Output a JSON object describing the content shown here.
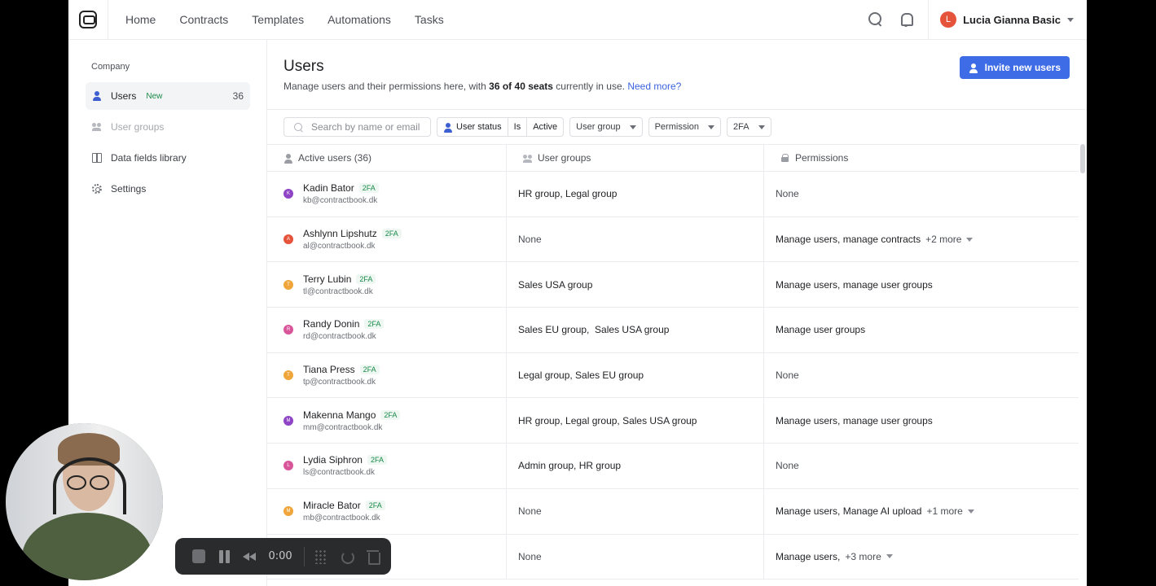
{
  "nav": {
    "links": [
      "Home",
      "Contracts",
      "Templates",
      "Automations",
      "Tasks"
    ],
    "user_initial": "L",
    "user_name": "Lucia Gianna Basic"
  },
  "sidebar": {
    "heading": "Company",
    "items": [
      {
        "label": "Users",
        "badge": "New",
        "count": "36"
      },
      {
        "label": "User groups"
      },
      {
        "label": "Data fields library"
      },
      {
        "label": "Settings"
      }
    ]
  },
  "header": {
    "title": "Users",
    "desc_prefix": "Manage users and their permissions here, with",
    "seats_used": "36",
    "seats_of": "of",
    "seats_total": "40",
    "seats_word": "seats",
    "desc_suffix": "currently in use.",
    "need_more": "Need more?",
    "invite_label": "Invite new users"
  },
  "filters": {
    "search_placeholder": "Search by name or email",
    "status_label": "User status",
    "status_op": "Is",
    "status_value": "Active",
    "group_label": "User group",
    "permission_label": "Permission",
    "tfa_label": "2FA"
  },
  "table": {
    "headers": [
      "Active users (36)",
      "User groups",
      "Permissions"
    ],
    "rows": [
      {
        "initial": "K",
        "color": "#8e44c4",
        "name": "Kadin Bator",
        "tfa": "2FA",
        "email": "kb@contractbook.dk",
        "groups": "HR group, Legal group",
        "permissions": "None",
        "more": ""
      },
      {
        "initial": "A",
        "color": "#e5533a",
        "name": "Ashlynn Lipshutz",
        "tfa": "2FA",
        "email": "al@contractbook.dk",
        "groups": "None",
        "permissions": "Manage users, manage contracts",
        "more": "+2 more"
      },
      {
        "initial": "T",
        "color": "#f0a53a",
        "name": "Terry Lubin",
        "tfa": "2FA",
        "email": "tl@contractbook.dk",
        "groups": "Sales USA group",
        "permissions": "Manage users, manage user groups",
        "more": ""
      },
      {
        "initial": "R",
        "color": "#d9559a",
        "name": "Randy Donin",
        "tfa": "2FA",
        "email": "rd@contractbook.dk",
        "groups": "Sales EU group,  Sales USA group",
        "permissions": "Manage user groups",
        "more": ""
      },
      {
        "initial": "T",
        "color": "#f0a53a",
        "name": "Tiana Press",
        "tfa": "2FA",
        "email": "tp@contractbook.dk",
        "groups": "Legal group, Sales EU group",
        "permissions": "None",
        "more": ""
      },
      {
        "initial": "M",
        "color": "#8e44c4",
        "name": "Makenna Mango",
        "tfa": "2FA",
        "email": "mm@contractbook.dk",
        "groups": "HR group, Legal group, Sales USA group",
        "permissions": "Manage users, manage user groups",
        "more": ""
      },
      {
        "initial": "L",
        "color": "#d9559a",
        "name": "Lydia Siphron",
        "tfa": "2FA",
        "email": "ls@contractbook.dk",
        "groups": "Admin group, HR group",
        "permissions": "None",
        "more": ""
      },
      {
        "initial": "M",
        "color": "#f0a53a",
        "name": "Miracle Bator",
        "tfa": "2FA",
        "email": "mb@contractbook.dk",
        "groups": "None",
        "permissions": "Manage users, Manage AI upload",
        "more": "+1 more"
      },
      {
        "initial": "",
        "color": "#ffffff",
        "name": "",
        "tfa": "",
        "email": "",
        "groups": "None",
        "permissions": "Manage users,",
        "more": "+3 more"
      }
    ]
  },
  "recorder": {
    "timer": "0:00"
  }
}
